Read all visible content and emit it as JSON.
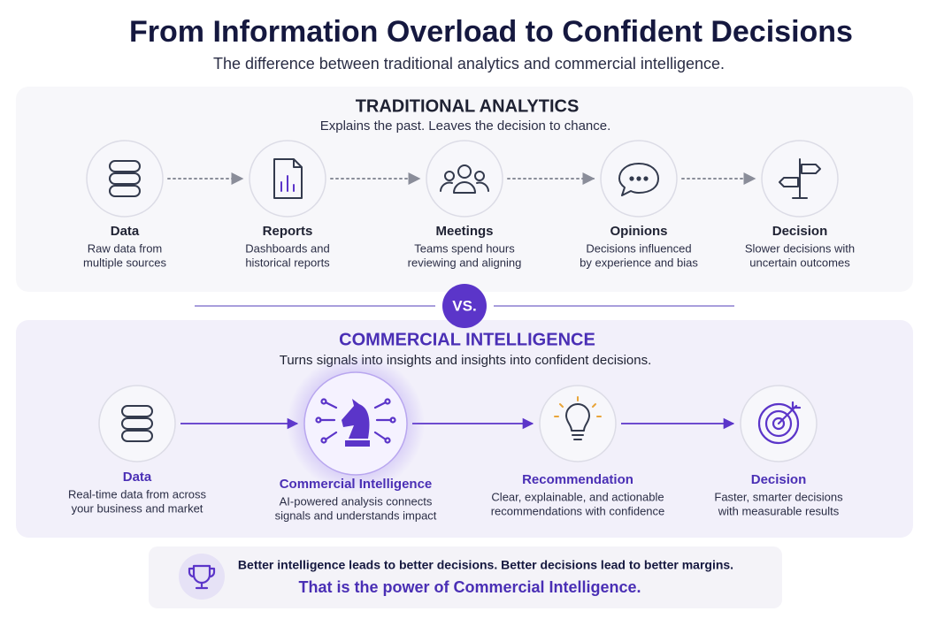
{
  "header": {
    "title": "From Information Overload to Confident Decisions",
    "subtitle": "The difference between traditional analytics and commercial intelligence."
  },
  "traditional": {
    "title": "TRADITIONAL ANALYTICS",
    "subtitle": "Explains the past. Leaves the decision to chance.",
    "steps": [
      {
        "label": "Data",
        "description": [
          "Raw data from",
          "multiple sources"
        ]
      },
      {
        "label": "Reports",
        "description": [
          "Dashboards and",
          "historical reports"
        ]
      },
      {
        "label": "Meetings",
        "description": [
          "Teams spend hours",
          "reviewing and aligning"
        ]
      },
      {
        "label": "Opinions",
        "description": [
          "Decisions influenced",
          "by experience and bias"
        ]
      },
      {
        "label": "Decision",
        "description": [
          "Slower decisions with",
          "uncertain outcomes"
        ]
      }
    ]
  },
  "vs": "VS.",
  "commercial": {
    "title": "COMMERCIAL INTELLIGENCE",
    "subtitle": "Turns signals into insights and insights into confident decisions.",
    "steps": [
      {
        "label": "Data",
        "description": [
          "Real-time data from across",
          "your business and market"
        ]
      },
      {
        "label": "Commercial Intelligence",
        "description": [
          "AI-powered analysis connects",
          "signals and understands impact"
        ]
      },
      {
        "label": "Recommendation",
        "description": [
          "Clear, explainable, and actionable",
          "recommendations with confidence"
        ]
      },
      {
        "label": "Decision",
        "description": [
          "Faster, smarter decisions",
          "with measurable results"
        ]
      }
    ]
  },
  "footer": {
    "statement": "Better intelligence leads to better decisions. Better decisions lead to better margins.",
    "tagline": "That is the power of Commercial Intelligence."
  }
}
